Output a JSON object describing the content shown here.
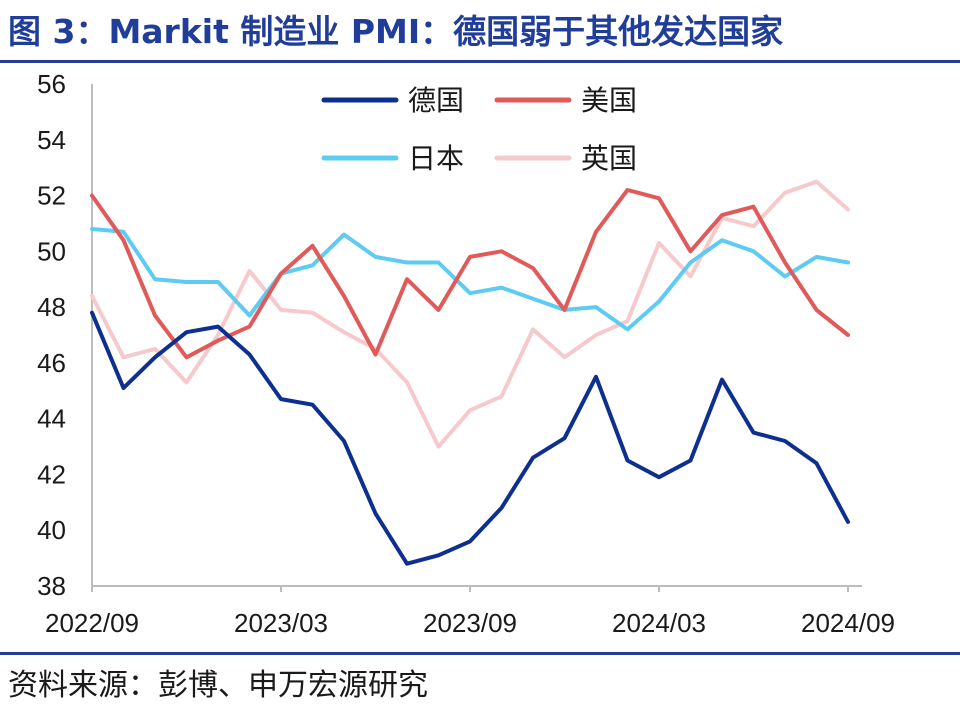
{
  "header": {
    "title": "图 3：Markit 制造业 PMI：德国弱于其他发达国家"
  },
  "footer": {
    "source": "资料来源：彭博、申万宏源研究"
  },
  "chart_data": {
    "type": "line",
    "title": "图 3：Markit 制造业 PMI：德国弱于其他发达国家",
    "xlabel": "",
    "ylabel": "",
    "ylim": [
      38,
      56
    ],
    "yticks": [
      38,
      40,
      42,
      44,
      46,
      48,
      50,
      52,
      54,
      56
    ],
    "x": [
      "2022/09",
      "2022/10",
      "2022/11",
      "2022/12",
      "2023/01",
      "2023/02",
      "2023/03",
      "2023/04",
      "2023/05",
      "2023/06",
      "2023/07",
      "2023/08",
      "2023/09",
      "2023/10",
      "2023/11",
      "2023/12",
      "2024/01",
      "2024/02",
      "2024/03",
      "2024/04",
      "2024/05",
      "2024/06",
      "2024/07",
      "2024/08",
      "2024/09"
    ],
    "xticks": [
      "2022/09",
      "2023/03",
      "2023/09",
      "2024/03",
      "2024/09"
    ],
    "legend_position": "top",
    "grid": false,
    "series": [
      {
        "name": "德国",
        "color": "#0d2f8f",
        "values": [
          47.8,
          45.1,
          46.2,
          47.1,
          47.3,
          46.3,
          44.7,
          44.5,
          43.2,
          40.6,
          38.8,
          39.1,
          39.6,
          40.8,
          42.6,
          43.3,
          45.5,
          42.5,
          41.9,
          42.5,
          45.4,
          43.5,
          43.2,
          42.4,
          40.3
        ]
      },
      {
        "name": "美国",
        "color": "#e05a5a",
        "values": [
          52.0,
          50.4,
          47.7,
          46.2,
          46.8,
          47.3,
          49.2,
          50.2,
          48.4,
          46.3,
          49.0,
          47.9,
          49.8,
          50.0,
          49.4,
          47.9,
          50.7,
          52.2,
          51.9,
          50.0,
          51.3,
          51.6,
          49.6,
          47.9,
          47.0
        ]
      },
      {
        "name": "日本",
        "color": "#5ecbf2",
        "values": [
          50.8,
          50.7,
          49.0,
          48.9,
          48.9,
          47.7,
          49.2,
          49.5,
          50.6,
          49.8,
          49.6,
          49.6,
          48.5,
          48.7,
          48.3,
          47.9,
          48.0,
          47.2,
          48.2,
          49.6,
          50.4,
          50.0,
          49.1,
          49.8,
          49.6
        ]
      },
      {
        "name": "英国",
        "color": "#f6c9cc",
        "values": [
          48.4,
          46.2,
          46.5,
          45.3,
          47.0,
          49.3,
          47.9,
          47.8,
          47.1,
          46.5,
          45.3,
          43.0,
          44.3,
          44.8,
          47.2,
          46.2,
          47.0,
          47.5,
          50.3,
          49.1,
          51.2,
          50.9,
          52.1,
          52.5,
          51.5
        ]
      }
    ]
  }
}
